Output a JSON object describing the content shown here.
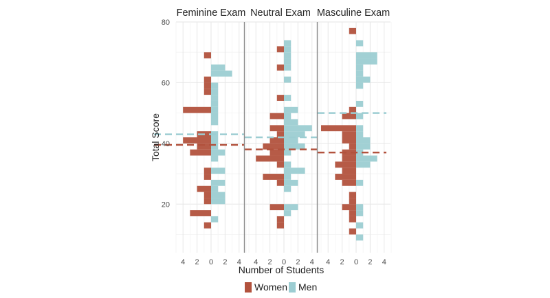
{
  "chart_data": {
    "type": "histogram-pyramid",
    "title": "",
    "xlabel": "Number of Students",
    "ylabel": "Total Score",
    "ylim": [
      4,
      80
    ],
    "yticks": [
      20,
      40,
      60,
      80
    ],
    "xlim": [
      -5,
      5
    ],
    "xticks": [
      -4,
      -2,
      0,
      2,
      4
    ],
    "xtick_labels": [
      "4",
      "2",
      "0",
      "2",
      "4"
    ],
    "bin_width": 2,
    "grid": true,
    "legend": {
      "position": "bottom",
      "entries": [
        {
          "name": "Women",
          "color": "#b2523d"
        },
        {
          "name": "Men",
          "color": "#9ccdd2"
        }
      ]
    },
    "colors": {
      "women": "#b2523d",
      "men": "#9ccdd2",
      "divider": "#8c8c8c"
    },
    "panels": [
      {
        "title": "Feminine Exam",
        "mean_women": 39.5,
        "mean_men": 43,
        "women": [
          [
            12,
            1
          ],
          [
            16,
            3
          ],
          [
            20,
            1
          ],
          [
            22,
            1
          ],
          [
            24,
            2
          ],
          [
            28,
            1
          ],
          [
            30,
            1
          ],
          [
            36,
            3
          ],
          [
            38,
            2
          ],
          [
            40,
            4
          ],
          [
            42,
            2
          ],
          [
            50,
            4
          ],
          [
            56,
            1
          ],
          [
            58,
            1
          ],
          [
            60,
            1
          ],
          [
            68,
            1
          ]
        ],
        "men": [
          [
            14,
            1
          ],
          [
            20,
            2
          ],
          [
            22,
            2
          ],
          [
            24,
            1
          ],
          [
            26,
            2
          ],
          [
            30,
            2
          ],
          [
            34,
            1
          ],
          [
            36,
            2
          ],
          [
            38,
            1
          ],
          [
            40,
            1
          ],
          [
            42,
            1
          ],
          [
            46,
            1
          ],
          [
            48,
            1
          ],
          [
            50,
            1
          ],
          [
            52,
            1
          ],
          [
            54,
            1
          ],
          [
            56,
            1
          ],
          [
            58,
            1
          ],
          [
            62,
            3
          ],
          [
            64,
            2
          ]
        ]
      },
      {
        "title": "Neutral Exam",
        "mean_women": 38,
        "mean_men": 42,
        "women": [
          [
            12,
            1
          ],
          [
            14,
            1
          ],
          [
            18,
            2
          ],
          [
            26,
            1
          ],
          [
            28,
            3
          ],
          [
            32,
            1
          ],
          [
            34,
            4
          ],
          [
            36,
            2
          ],
          [
            38,
            3
          ],
          [
            40,
            2
          ],
          [
            42,
            1
          ],
          [
            44,
            2
          ],
          [
            48,
            2
          ],
          [
            54,
            1
          ],
          [
            64,
            1
          ],
          [
            70,
            1
          ]
        ],
        "men": [
          [
            16,
            1
          ],
          [
            18,
            2
          ],
          [
            24,
            1
          ],
          [
            26,
            2
          ],
          [
            28,
            1
          ],
          [
            30,
            3
          ],
          [
            32,
            1
          ],
          [
            36,
            1
          ],
          [
            38,
            3
          ],
          [
            40,
            2
          ],
          [
            42,
            3
          ],
          [
            44,
            4
          ],
          [
            46,
            2
          ],
          [
            48,
            1
          ],
          [
            50,
            2
          ],
          [
            54,
            1
          ],
          [
            60,
            1
          ],
          [
            64,
            1
          ],
          [
            66,
            1
          ],
          [
            68,
            1
          ],
          [
            70,
            1
          ],
          [
            72,
            1
          ]
        ]
      },
      {
        "title": "Masculine Exam",
        "mean_women": 37,
        "mean_men": 50,
        "women": [
          [
            10,
            1
          ],
          [
            14,
            1
          ],
          [
            16,
            1
          ],
          [
            18,
            2
          ],
          [
            20,
            1
          ],
          [
            22,
            1
          ],
          [
            26,
            2
          ],
          [
            28,
            3
          ],
          [
            30,
            2
          ],
          [
            32,
            3
          ],
          [
            34,
            2
          ],
          [
            36,
            2
          ],
          [
            38,
            1
          ],
          [
            40,
            2
          ],
          [
            42,
            2
          ],
          [
            44,
            5
          ],
          [
            48,
            2
          ],
          [
            50,
            1
          ],
          [
            76,
            1
          ]
        ],
        "men": [
          [
            8,
            1
          ],
          [
            12,
            1
          ],
          [
            16,
            1
          ],
          [
            18,
            1
          ],
          [
            26,
            1
          ],
          [
            32,
            2
          ],
          [
            34,
            3
          ],
          [
            36,
            1
          ],
          [
            38,
            2
          ],
          [
            40,
            2
          ],
          [
            42,
            1
          ],
          [
            44,
            1
          ],
          [
            48,
            1
          ],
          [
            52,
            1
          ],
          [
            58,
            1
          ],
          [
            60,
            2
          ],
          [
            62,
            1
          ],
          [
            64,
            1
          ],
          [
            66,
            3
          ],
          [
            68,
            3
          ],
          [
            72,
            1
          ]
        ]
      }
    ]
  }
}
